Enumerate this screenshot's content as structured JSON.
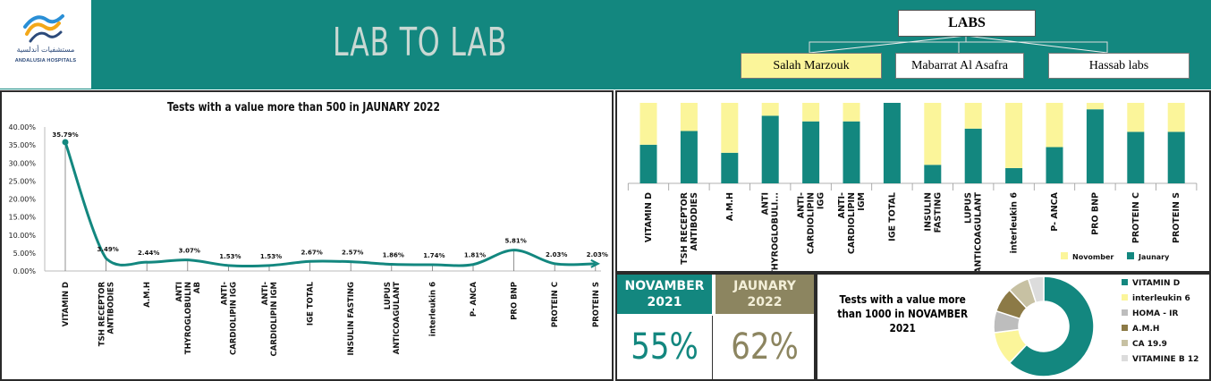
{
  "header": {
    "title": "LAB TO LAB",
    "logo_text": "ANDALUSIA HOSPITALS",
    "logo_arabic": "مستشفيات أندلسية",
    "labs_label": "LABS",
    "labs": [
      {
        "label": "Salah Marzouk",
        "selected": true
      },
      {
        "label": "Mabarrat Al Asafra",
        "selected": false
      },
      {
        "label": "Hassab labs",
        "selected": false
      }
    ],
    "colors": {
      "teal": "#13877f",
      "yellow": "#fbf59a",
      "olive": "#8c8560"
    }
  },
  "line_chart": {
    "title": "Tests with a value more than  500  in JAUNARY 2022",
    "chart_data": {
      "type": "line",
      "categories": [
        "VITAMIN D",
        "TSH RECEPTOR ANTIBODIES",
        "A.M.H",
        "ANTI THYROGLOBULIN AB",
        "ANTI- CARDIOLIPIN IGG",
        "ANTI- CARDIOLIPIN IGM",
        "IGE TOTAL",
        "INSULIN FASTING",
        "LUPUS ANTICOAGULANT",
        "interleukin 6",
        "P- ANCA",
        "PRO BNP",
        "PROTEIN C",
        "PROTEIN S"
      ],
      "values": [
        35.79,
        3.49,
        2.44,
        3.07,
        1.53,
        1.53,
        2.67,
        2.57,
        1.86,
        1.74,
        1.81,
        5.81,
        2.03,
        2.03
      ],
      "labels": [
        "35.79%",
        "3.49%",
        "2.44%",
        "3.07%",
        "1.53%",
        "1.53%",
        "2.67%",
        "2.57%",
        "1.86%",
        "1.74%",
        "1.81%",
        "5.81%",
        "2.03%",
        "2.03%"
      ],
      "y_ticks": [
        "0.00%",
        "5.00%",
        "10.00%",
        "15.00%",
        "20.00%",
        "25.00%",
        "30.00%",
        "35.00%",
        "40.00%"
      ],
      "ylim": [
        0,
        40
      ],
      "color": "#13877f"
    }
  },
  "bar_chart": {
    "chart_data": {
      "type": "bar",
      "stacked": true,
      "normalized": true,
      "categories": [
        "VITAMIN D",
        "TSH RECEPTOR ANTIBODIES",
        "A.M.H",
        "ANTI THYROGLOBULI...",
        "ANTI- CARDIOLIPIN IGG",
        "ANTI- CARDIOLIPIN IGM",
        "IGE TOTAL",
        "INSULIN FASTING",
        "LUPUS ANTICOAGULANT",
        "interleukin 6",
        "P- ANCA",
        "PRO BNP",
        "PROTEIN C",
        "PROTEIN S"
      ],
      "series": [
        {
          "name": "Jaunary",
          "color": "#13877f",
          "values": [
            0.48,
            0.65,
            0.38,
            0.84,
            0.77,
            0.77,
            1.0,
            0.23,
            0.68,
            0.19,
            0.45,
            0.92,
            0.64,
            0.64
          ]
        },
        {
          "name": "Novomber",
          "color": "#fbf59a",
          "values": [
            0.52,
            0.35,
            0.62,
            0.16,
            0.23,
            0.23,
            0.0,
            0.77,
            0.32,
            0.81,
            0.55,
            0.08,
            0.36,
            0.36
          ]
        }
      ],
      "legend": [
        "Novomber",
        "Jaunary"
      ],
      "legend_position": "bottom-right"
    }
  },
  "kpi": {
    "november": {
      "label": "NOVAMBER 2021",
      "value": "55%",
      "bg": "#13877f",
      "fg": "#13877f"
    },
    "january": {
      "label": "JAUNARY 2022",
      "value": "62%",
      "bg": "#8c8560",
      "fg": "#8c8560"
    }
  },
  "donut_chart": {
    "title": "Tests with a value more than  1000  in NOVAMBER 2021",
    "chart_data": {
      "type": "pie",
      "donut": true,
      "categories": [
        "VITAMIN D",
        "interleukin 6",
        "HOMA - IR",
        "A.M.H",
        "CA 19.9",
        "VITAMINE B 12"
      ],
      "values": [
        62,
        11,
        7,
        8,
        7,
        5
      ],
      "colors": [
        "#13877f",
        "#fbf59a",
        "#bdbdbd",
        "#8c7a46",
        "#c7c1a3",
        "#dcdcdc"
      ],
      "legend_position": "right"
    }
  }
}
